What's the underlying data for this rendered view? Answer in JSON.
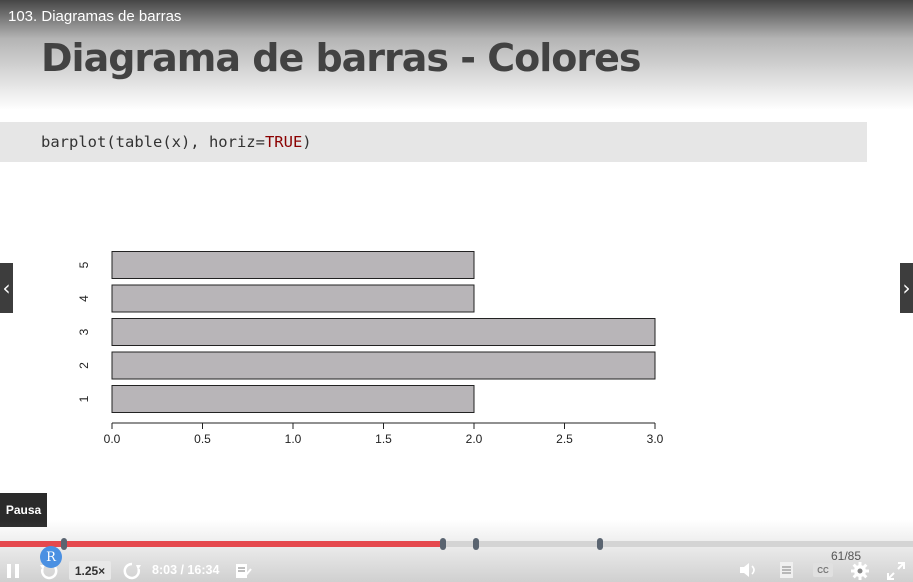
{
  "video": {
    "title": "103. Diagramas de barras"
  },
  "slide": {
    "title": "Diagrama de barras - Colores",
    "code_prefix": "barplot(table(x), horiz=",
    "code_keyword": "TRUE",
    "code_suffix": ")"
  },
  "chart_data": {
    "type": "bar",
    "orientation": "horizontal",
    "categories": [
      "1",
      "2",
      "3",
      "4",
      "5"
    ],
    "values": [
      2,
      3,
      3,
      2,
      2
    ],
    "xlim": [
      0,
      3
    ],
    "xticks": [
      "0.0",
      "0.5",
      "1.0",
      "1.5",
      "2.0",
      "2.5",
      "3.0"
    ],
    "bar_color": "#b8b5b8",
    "grid": false,
    "title": "",
    "xlabel": "",
    "ylabel": ""
  },
  "player": {
    "tooltip": "Pausa",
    "speed": "1.25×",
    "time": "8:03 / 16:34",
    "page_counter": "61/85",
    "progress": 0.485,
    "markers": [
      0.07,
      0.485,
      0.521,
      0.657
    ],
    "progress_color": "#e5484d",
    "r_badge": "R",
    "cc_label": "CC",
    "icons": [
      "pause-icon",
      "rewind-icon",
      "forward-icon",
      "notes-icon",
      "volume-icon",
      "transcript-icon",
      "cc-icon",
      "settings-icon",
      "fullscreen-icon"
    ]
  },
  "nav": {
    "prev_glyph": "‹",
    "next_glyph": "›"
  }
}
